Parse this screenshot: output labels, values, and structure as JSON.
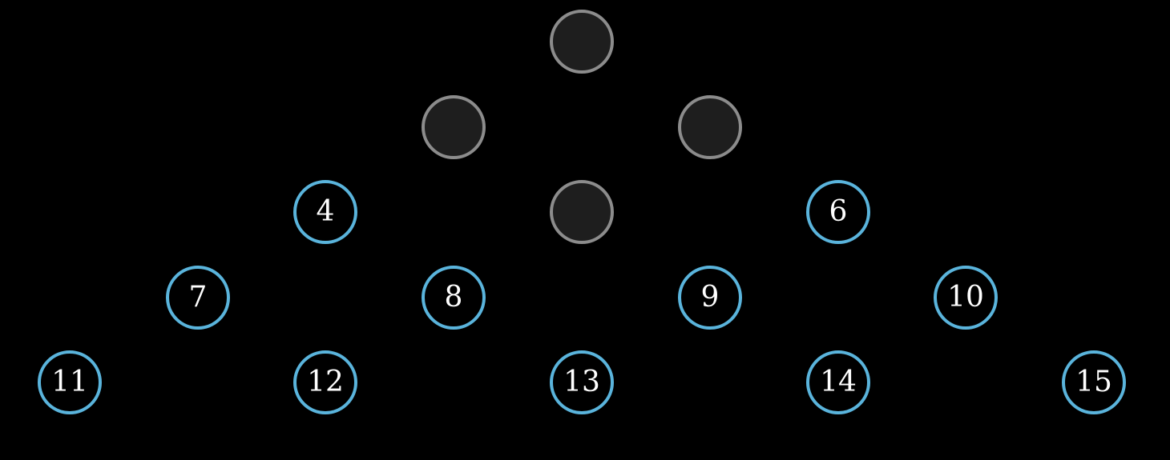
{
  "colors": {
    "background": "#000000",
    "peg_border": "#5ab4dc",
    "hole_border": "#8c8c8c",
    "hole_fill": "#1e1e1e",
    "label": "#ffffff"
  },
  "board": {
    "type": "triangular-peg-solitaire",
    "rows": 5,
    "positions": [
      {
        "id": 1,
        "row": 1,
        "occupied": false,
        "label": ""
      },
      {
        "id": 2,
        "row": 2,
        "occupied": false,
        "label": ""
      },
      {
        "id": 3,
        "row": 2,
        "occupied": false,
        "label": ""
      },
      {
        "id": 4,
        "row": 3,
        "occupied": true,
        "label": "4"
      },
      {
        "id": 5,
        "row": 3,
        "occupied": false,
        "label": ""
      },
      {
        "id": 6,
        "row": 3,
        "occupied": true,
        "label": "6"
      },
      {
        "id": 7,
        "row": 4,
        "occupied": true,
        "label": "7"
      },
      {
        "id": 8,
        "row": 4,
        "occupied": true,
        "label": "8"
      },
      {
        "id": 9,
        "row": 4,
        "occupied": true,
        "label": "9"
      },
      {
        "id": 10,
        "row": 4,
        "occupied": true,
        "label": "10"
      },
      {
        "id": 11,
        "row": 5,
        "occupied": true,
        "label": "11"
      },
      {
        "id": 12,
        "row": 5,
        "occupied": true,
        "label": "12"
      },
      {
        "id": 13,
        "row": 5,
        "occupied": true,
        "label": "13"
      },
      {
        "id": 14,
        "row": 5,
        "occupied": true,
        "label": "14"
      },
      {
        "id": 15,
        "row": 5,
        "occupied": true,
        "label": "15"
      }
    ]
  }
}
